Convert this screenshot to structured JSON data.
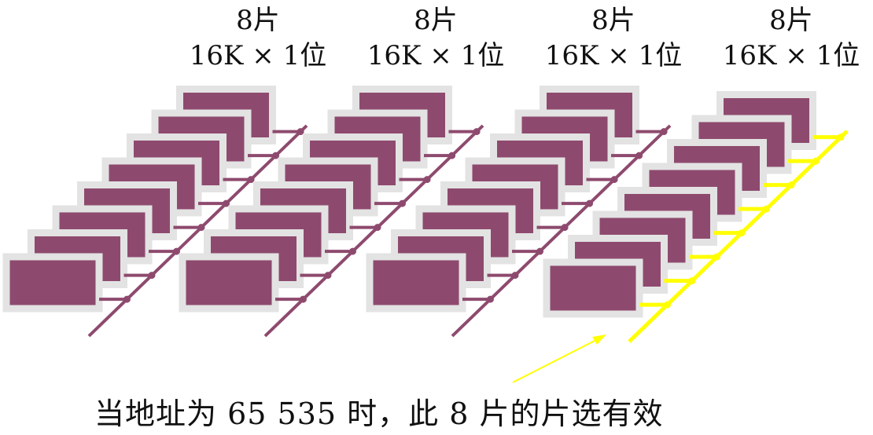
{
  "groups": [
    {
      "count_label": "8片",
      "spec_label": "16K × 1位",
      "chips": 8,
      "highlighted": false
    },
    {
      "count_label": "8片",
      "spec_label": "16K × 1位",
      "chips": 8,
      "highlighted": false
    },
    {
      "count_label": "8片",
      "spec_label": "16K × 1位",
      "chips": 8,
      "highlighted": false
    },
    {
      "count_label": "8片",
      "spec_label": "16K × 1位",
      "chips": 8,
      "highlighted": true
    }
  ],
  "caption": "当地址为 65 535 时，此 8 片的片选有效",
  "colors": {
    "chip_fill": "#8e4a6e",
    "chip_border": "#e3e3e3",
    "select_line": "#8e4a6e",
    "active_select_line": "#ffff00",
    "arrow": "#ffff00"
  }
}
